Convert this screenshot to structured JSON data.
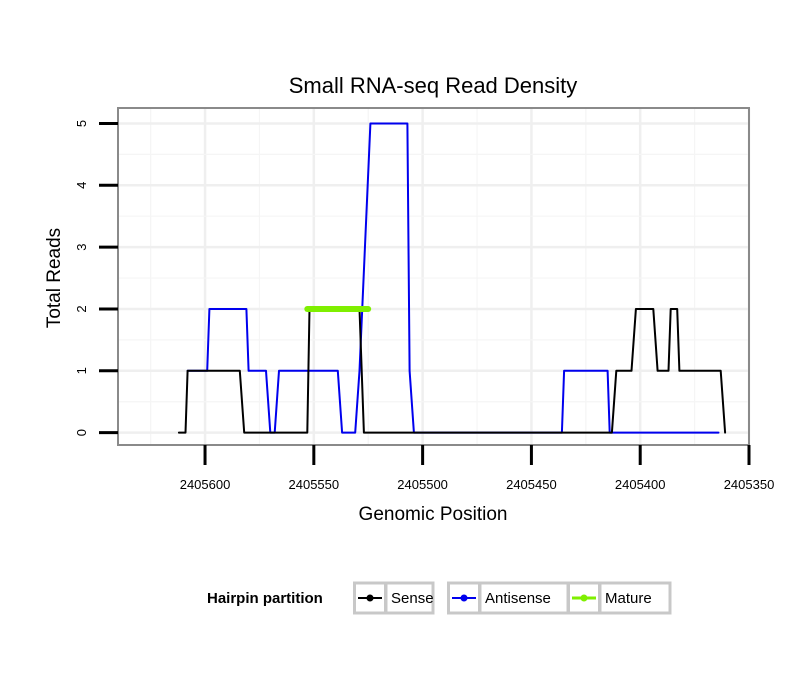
{
  "chart_data": {
    "type": "line",
    "title": "Small RNA-seq Read Density",
    "xlabel": "Genomic Position",
    "ylabel": "Total Reads",
    "x_reversed": true,
    "xlim": [
      2405640,
      2405350
    ],
    "ylim": [
      -0.2,
      5.25
    ],
    "x_ticks": [
      2405600,
      2405550,
      2405500,
      2405450,
      2405400,
      2405350
    ],
    "x_tick_labels": [
      "2405600",
      "2405550",
      "2405500",
      "2405450",
      "2405400",
      "2405350"
    ],
    "y_ticks": [
      0,
      1,
      2,
      3,
      4,
      5
    ],
    "y_tick_labels": [
      "0",
      "1",
      "2",
      "3",
      "4",
      "5"
    ],
    "grid": true,
    "legend": {
      "title": "Hairpin partition",
      "position": "bottom",
      "entries": [
        "Sense",
        "Antisense",
        "Mature"
      ]
    },
    "series": [
      {
        "name": "Sense",
        "color": "#000000",
        "x": [
          2405612,
          2405609,
          2405608,
          2405584,
          2405582,
          2405553,
          2405552,
          2405529,
          2405527,
          2405413,
          2405411,
          2405404,
          2405402,
          2405394,
          2405392,
          2405387,
          2405386,
          2405383,
          2405382,
          2405378,
          2405377,
          2405363,
          2405361
        ],
        "y": [
          0,
          0,
          1,
          1,
          0,
          0,
          2,
          2,
          0,
          0,
          1,
          1,
          2,
          2,
          1,
          1,
          2,
          2,
          1,
          1,
          1,
          1,
          0
        ]
      },
      {
        "name": "Antisense",
        "color": "#0000ee",
        "x": [
          2405608,
          2405599,
          2405598,
          2405581,
          2405580,
          2405572,
          2405570,
          2405568,
          2405566,
          2405539,
          2405537,
          2405531,
          2405529,
          2405524,
          2405522,
          2405507,
          2405506,
          2405504,
          2405436,
          2405435,
          2405415,
          2405414,
          2405364
        ],
        "y": [
          1,
          1,
          2,
          2,
          1,
          1,
          0,
          0,
          1,
          1,
          0,
          0,
          1,
          5,
          5,
          5,
          1,
          0,
          0,
          1,
          1,
          0,
          0
        ]
      },
      {
        "name": "Mature",
        "color": "#7fef00",
        "x": [
          2405553,
          2405525
        ],
        "y": [
          2,
          2
        ]
      }
    ]
  }
}
